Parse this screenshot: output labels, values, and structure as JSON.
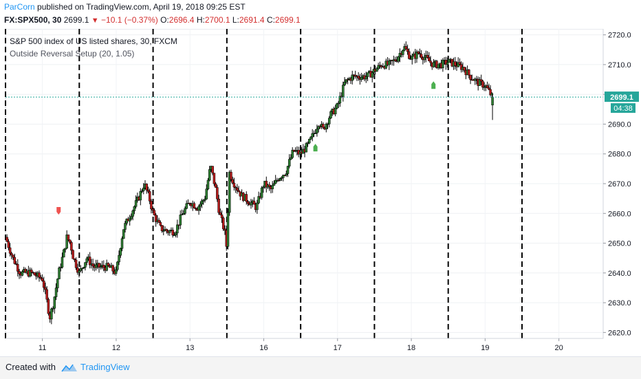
{
  "header": {
    "author": "ParCorn",
    "published_text": "published on TradingView.com, April 19, 2018 09:25 EST",
    "symbol": "FX:SPX500, 30",
    "last_price": "2699.1",
    "change": "−10.1 (−0.37%)",
    "o_label": "O:",
    "o_value": "2696.4",
    "h_label": "H:",
    "h_value": "2700.1",
    "l_label": "L:",
    "l_value": "2691.4",
    "c_label": "C:",
    "c_value": "2699.1"
  },
  "legend": {
    "title": "S&P 500 index of US listed shares, 30, FXCM",
    "indicator": "Outside Reversal Setup (20, 1.05)"
  },
  "price_tag": "2699.1",
  "countdown_tag": "04:38",
  "footer": {
    "created_label": "Created with",
    "brand": "TradingView"
  },
  "colors": {
    "up_candle": "#2e7d32",
    "down_candle": "#b71c1c",
    "wick": "#000000",
    "session_line": "#000000",
    "price_line": "#26a69a",
    "bull_marker": "#4caf50",
    "bear_marker": "#ef5350",
    "brand": "#2196f3"
  },
  "chart_data": {
    "type": "candlestick",
    "title": "S&P 500 index of US listed shares, 30, FXCM",
    "x_tick_labels": [
      "11",
      "12",
      "13",
      "16",
      "17",
      "18",
      "19",
      "20"
    ],
    "y_ticks": [
      2620.0,
      2630.0,
      2640.0,
      2650.0,
      2660.0,
      2670.0,
      2680.0,
      2690.0,
      2700.0,
      2710.0,
      2720.0
    ],
    "ylim": [
      2618,
      2722
    ],
    "xlim": [
      0,
      8.1
    ],
    "current_price": 2699.1,
    "session_breaks": [
      0.0,
      1.0,
      2.0,
      3.0,
      4.0,
      5.0,
      6.0,
      7.0
    ],
    "anchors": [
      [
        0.0,
        2652
      ],
      [
        0.1,
        2645
      ],
      [
        0.2,
        2640
      ],
      [
        0.35,
        2640
      ],
      [
        0.5,
        2638
      ],
      [
        0.55,
        2632
      ],
      [
        0.6,
        2625
      ],
      [
        0.65,
        2630
      ],
      [
        0.72,
        2640
      ],
      [
        0.8,
        2648
      ],
      [
        0.83,
        2652
      ],
      [
        0.88,
        2650
      ],
      [
        0.92,
        2645
      ],
      [
        1.0,
        2640
      ],
      [
        1.1,
        2645
      ],
      [
        1.2,
        2642
      ],
      [
        1.4,
        2642
      ],
      [
        1.5,
        2640
      ],
      [
        1.55,
        2648
      ],
      [
        1.6,
        2655
      ],
      [
        1.7,
        2660
      ],
      [
        1.8,
        2665
      ],
      [
        1.88,
        2670
      ],
      [
        1.95,
        2665
      ],
      [
        2.0,
        2660
      ],
      [
        2.1,
        2655
      ],
      [
        2.2,
        2654
      ],
      [
        2.3,
        2654
      ],
      [
        2.4,
        2660
      ],
      [
        2.5,
        2664
      ],
      [
        2.6,
        2662
      ],
      [
        2.7,
        2665
      ],
      [
        2.78,
        2676
      ],
      [
        2.85,
        2668
      ],
      [
        2.9,
        2660
      ],
      [
        2.97,
        2654
      ],
      [
        3.0,
        2648
      ],
      [
        3.03,
        2674
      ],
      [
        3.1,
        2670
      ],
      [
        3.2,
        2666
      ],
      [
        3.3,
        2664
      ],
      [
        3.4,
        2662
      ],
      [
        3.5,
        2670
      ],
      [
        3.6,
        2668
      ],
      [
        3.7,
        2672
      ],
      [
        3.8,
        2674
      ],
      [
        3.9,
        2681
      ],
      [
        4.0,
        2680
      ],
      [
        4.1,
        2683
      ],
      [
        4.2,
        2688
      ],
      [
        4.25,
        2691
      ],
      [
        4.3,
        2688
      ],
      [
        4.4,
        2693
      ],
      [
        4.5,
        2696
      ],
      [
        4.6,
        2704
      ],
      [
        4.7,
        2706
      ],
      [
        4.8,
        2706
      ],
      [
        4.9,
        2706
      ],
      [
        5.0,
        2708
      ],
      [
        5.1,
        2710
      ],
      [
        5.2,
        2710
      ],
      [
        5.3,
        2712
      ],
      [
        5.4,
        2716
      ],
      [
        5.5,
        2712
      ],
      [
        5.6,
        2714
      ],
      [
        5.7,
        2712
      ],
      [
        5.8,
        2710
      ],
      [
        5.9,
        2710
      ],
      [
        6.0,
        2711
      ],
      [
        6.1,
        2710
      ],
      [
        6.2,
        2709
      ],
      [
        6.3,
        2706
      ],
      [
        6.4,
        2704
      ],
      [
        6.5,
        2703
      ],
      [
        6.6,
        2699
      ]
    ],
    "markers": [
      {
        "type": "bearish",
        "x": 0.72,
        "price": 2661
      },
      {
        "type": "bullish",
        "x": 4.2,
        "price": 2682
      },
      {
        "type": "bullish",
        "x": 5.8,
        "price": 2703
      }
    ]
  }
}
